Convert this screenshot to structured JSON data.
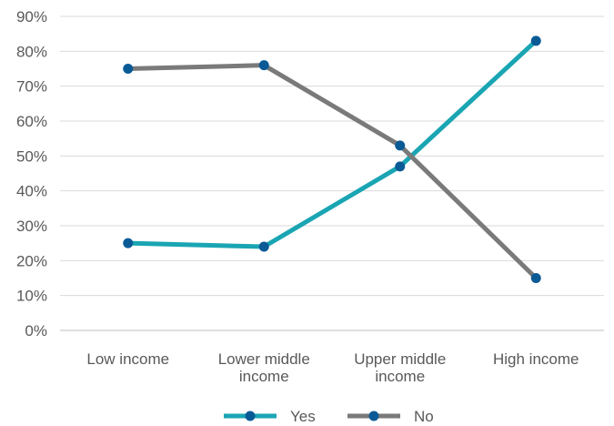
{
  "chart_data": {
    "type": "line",
    "categories": [
      [
        "Low income"
      ],
      [
        "Lower middle",
        "income"
      ],
      [
        "Upper middle",
        "income"
      ],
      [
        "High income"
      ]
    ],
    "y_ticks": [
      "0%",
      "10%",
      "20%",
      "30%",
      "40%",
      "50%",
      "60%",
      "70%",
      "80%",
      "90%"
    ],
    "ylim": [
      0,
      90
    ],
    "y_unit": "%",
    "grid": true,
    "legend_position": "bottom",
    "series": [
      {
        "name": "Yes",
        "values": [
          25,
          24,
          47,
          83
        ],
        "color": "#1aa5b3",
        "marker_color": "#0a5a96"
      },
      {
        "name": "No",
        "values": [
          75,
          76,
          53,
          15
        ],
        "color": "#7a7a7a",
        "marker_color": "#0a5a96"
      }
    ]
  }
}
